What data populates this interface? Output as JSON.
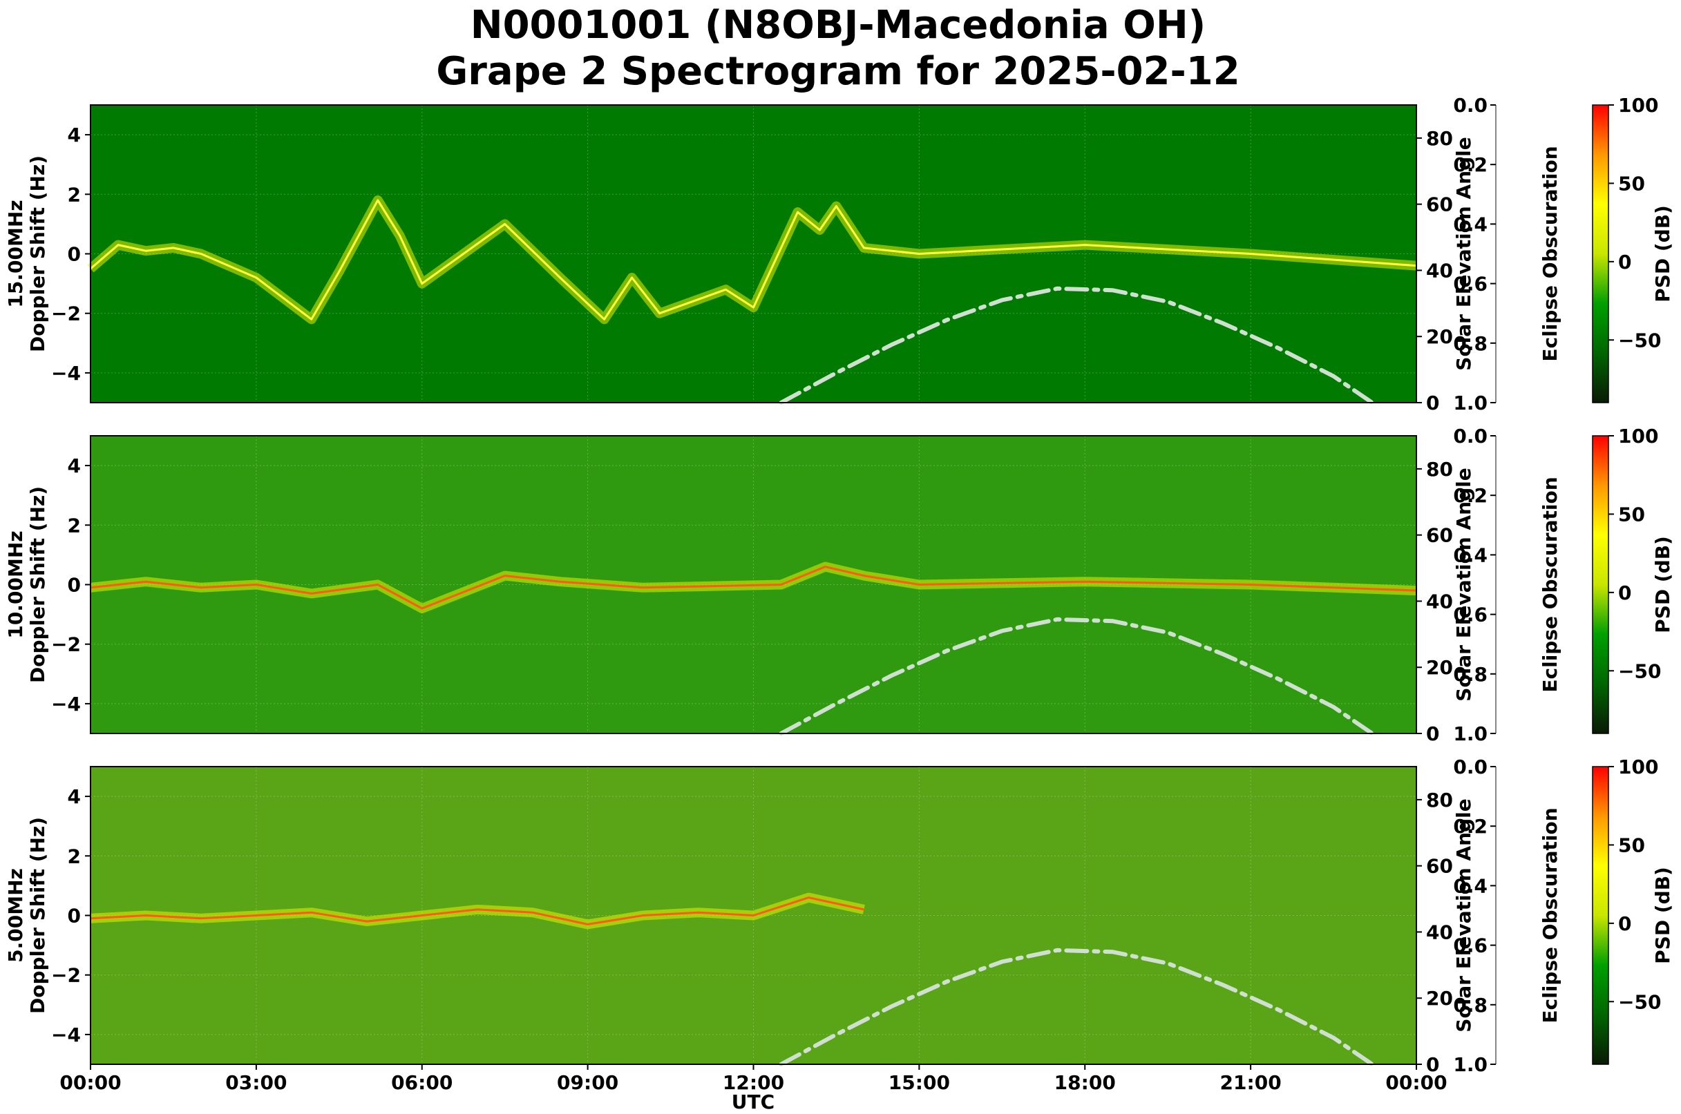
{
  "title_line1": "N0001001 (N8OBJ-Macedonia OH)",
  "title_line2": "Grape 2 Spectrogram for 2025-02-12",
  "chart_data": {
    "type": "heatmap",
    "x_label": "UTC",
    "x_ticks": [
      "00:00",
      "03:00",
      "06:00",
      "09:00",
      "12:00",
      "15:00",
      "18:00",
      "21:00",
      "00:00"
    ],
    "y_label": "Doppler Shift (Hz)",
    "y_ticks": [
      4,
      2,
      0,
      -2,
      -4
    ],
    "ylim": [
      -5,
      5
    ],
    "right_axis_label": "Solar Elevation Angle",
    "right_axis_ticks": [
      0,
      20,
      40,
      60,
      80
    ],
    "right_axis_range": [
      0,
      90
    ],
    "eclipse_label": "Eclipse Obscuration",
    "eclipse_ticks": [
      "0.0",
      "0.2",
      "0.4",
      "0.6",
      "0.8",
      "1.0"
    ],
    "colorbar_label": "PSD (dB)",
    "colorbar_ticks": [
      "100",
      "50",
      "0",
      "−50"
    ],
    "colorbar_range": [
      -90,
      100
    ],
    "colormap": [
      "#0a1a05",
      "#006600",
      "#00a000",
      "#c8e600",
      "#ffff00",
      "#ff9900",
      "#ff0000"
    ],
    "solar_elevation_curve": {
      "style": "dash-dot",
      "color": "#d0e0d0",
      "x_hours": [
        12.5,
        13.5,
        14.5,
        15.5,
        16.5,
        17.5,
        18.5,
        19.5,
        20.5,
        21.5,
        22.5,
        23.2
      ],
      "y_degrees": [
        0,
        9,
        17.5,
        25,
        31,
        34.5,
        34,
        30.5,
        24,
        16.5,
        8,
        0
      ]
    },
    "panels": [
      {
        "label": "15.00MHz",
        "background": "#007a00",
        "trace": [
          [
            0,
            -0.5
          ],
          [
            0.5,
            0.3
          ],
          [
            1,
            0.1
          ],
          [
            1.5,
            0.2
          ],
          [
            2,
            0
          ],
          [
            3,
            -0.8
          ],
          [
            4,
            -2.2
          ],
          [
            4.5,
            -0.6
          ],
          [
            5.2,
            1.8
          ],
          [
            5.6,
            0.6
          ],
          [
            6,
            -1
          ],
          [
            7.5,
            1
          ],
          [
            8.5,
            -0.8
          ],
          [
            9.3,
            -2.2
          ],
          [
            9.8,
            -0.8
          ],
          [
            10.3,
            -2
          ],
          [
            11.5,
            -1.2
          ],
          [
            12,
            -1.8
          ],
          [
            12.8,
            1.4
          ],
          [
            13.2,
            0.8
          ],
          [
            13.5,
            1.6
          ],
          [
            14,
            0.2
          ],
          [
            15,
            0
          ],
          [
            18,
            0.3
          ],
          [
            21,
            0
          ],
          [
            24,
            -0.4
          ]
        ]
      },
      {
        "label": "10.00MHz",
        "background": "#2f9a10",
        "trace": [
          [
            0,
            -0.1
          ],
          [
            1,
            0.1
          ],
          [
            2,
            -0.1
          ],
          [
            3,
            0
          ],
          [
            4,
            -0.3
          ],
          [
            5.2,
            0
          ],
          [
            6,
            -0.8
          ],
          [
            7.5,
            0.3
          ],
          [
            8.5,
            0.1
          ],
          [
            10,
            -0.1
          ],
          [
            12.5,
            0
          ],
          [
            13.3,
            0.6
          ],
          [
            14,
            0.3
          ],
          [
            15,
            0
          ],
          [
            18,
            0.1
          ],
          [
            21,
            0
          ],
          [
            24,
            -0.2
          ]
        ]
      },
      {
        "label": "5.00MHz",
        "background": "#5aa418",
        "trace": [
          [
            0,
            -0.1
          ],
          [
            1,
            0
          ],
          [
            2,
            -0.1
          ],
          [
            3,
            0
          ],
          [
            4,
            0.1
          ],
          [
            5,
            -0.2
          ],
          [
            6,
            0
          ],
          [
            7,
            0.2
          ],
          [
            8,
            0.1
          ],
          [
            9,
            -0.3
          ],
          [
            10,
            0
          ],
          [
            11,
            0.1
          ],
          [
            12,
            0
          ],
          [
            13,
            0.6
          ],
          [
            14,
            0.2
          ]
        ]
      }
    ]
  }
}
